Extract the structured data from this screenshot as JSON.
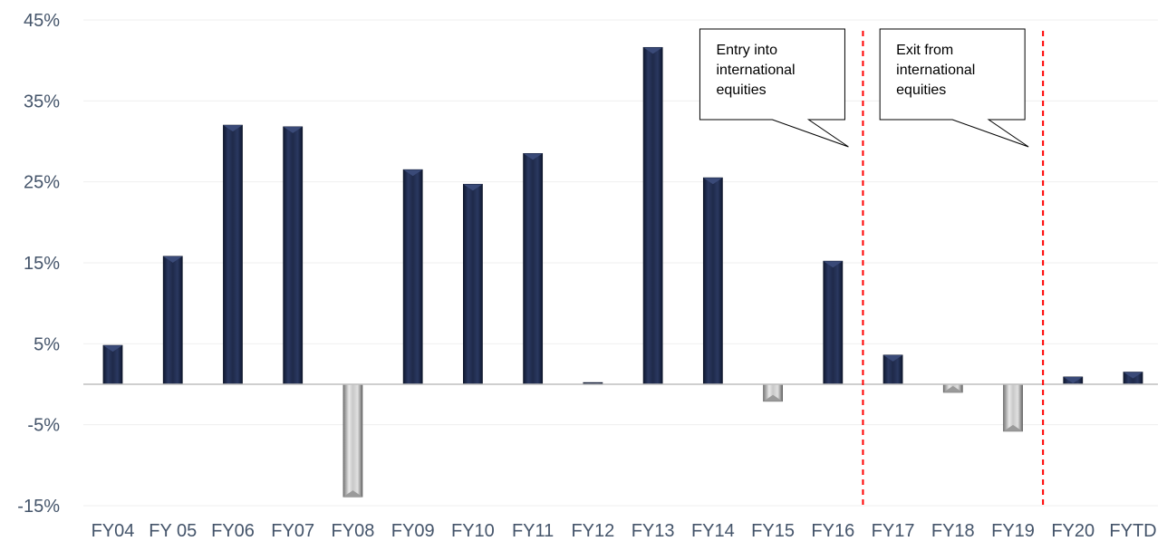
{
  "chart_data": {
    "type": "bar",
    "categories": [
      "FY04",
      "FY 05",
      "FY06",
      "FY07",
      "FY08",
      "FY09",
      "FY10",
      "FY11",
      "FY12",
      "FY13",
      "FY14",
      "FY15",
      "FY16",
      "FY17",
      "FY18",
      "FY19",
      "FY20",
      "FYTD"
    ],
    "values": [
      4.8,
      15.8,
      32.0,
      31.8,
      -13.9,
      26.5,
      24.7,
      28.5,
      0.2,
      41.6,
      25.5,
      -2.1,
      15.2,
      3.6,
      -1.0,
      -5.8,
      0.9,
      1.5
    ],
    "yticks": [
      "45%",
      "35%",
      "25%",
      "15%",
      "5%",
      "-5%",
      "-15%"
    ],
    "ylim": [
      -15,
      45
    ],
    "grid": true,
    "colors": {
      "positive": "#1f2a4a",
      "negative": "#b8b8b8",
      "divider": "#ff0000"
    },
    "annotations": [
      {
        "lines": [
          "Entry into",
          "international",
          "equities"
        ],
        "after_category": "FY16"
      },
      {
        "lines": [
          "Exit from",
          "international",
          "equities"
        ],
        "after_category": "FY19"
      }
    ]
  }
}
